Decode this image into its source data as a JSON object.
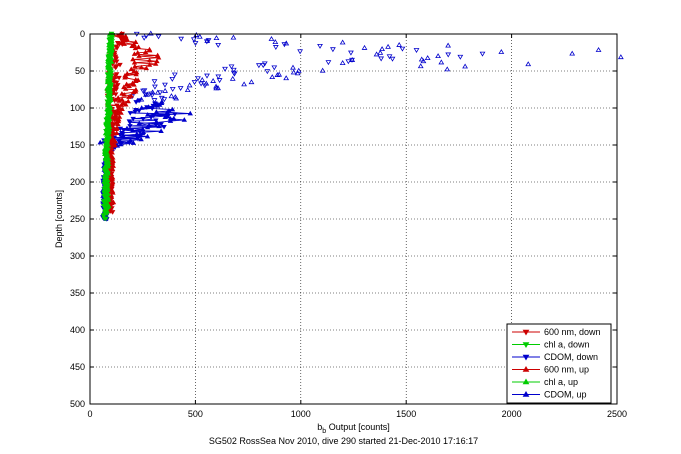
{
  "chart_data": {
    "type": "scatter",
    "title": "",
    "footer": "SG502 RossSea Nov 2010, dive 290 started 21-Dec-2010 17:16:17",
    "xlabel_main": "b",
    "xlabel_sub": "b",
    "xlabel_rest": " Output [counts]",
    "ylabel": "Depth [counts]",
    "xlim": [
      0,
      2500
    ],
    "ylim": [
      0,
      500
    ],
    "y_reversed": true,
    "xticks": [
      0,
      500,
      1000,
      1500,
      2000,
      2500
    ],
    "yticks": [
      0,
      50,
      100,
      150,
      200,
      250,
      300,
      350,
      400,
      450,
      500
    ],
    "grid": "dotted",
    "legend_position": "bottom-right",
    "series": [
      {
        "name": "600 nm, down",
        "color": "#cc0000",
        "marker": "triangle-down",
        "profile": [
          [
            0,
            125
          ],
          [
            10,
            130
          ],
          [
            20,
            125
          ],
          [
            40,
            120
          ],
          [
            60,
            115
          ],
          [
            80,
            110
          ],
          [
            100,
            105
          ],
          [
            120,
            100
          ],
          [
            150,
            95
          ],
          [
            200,
            90
          ],
          [
            240,
            95
          ]
        ]
      },
      {
        "name": "chl a, down",
        "color": "#00cc00",
        "marker": "triangle-down",
        "profile": [
          [
            0,
            100
          ],
          [
            20,
            95
          ],
          [
            50,
            92
          ],
          [
            80,
            90
          ],
          [
            100,
            88
          ],
          [
            150,
            80
          ],
          [
            200,
            75
          ],
          [
            250,
            72
          ]
        ]
      },
      {
        "name": "CDOM, down",
        "color": "#0000cc",
        "marker": "triangle-down",
        "profile": [
          [
            0,
            200
          ],
          [
            10,
            500
          ],
          [
            20,
            1200
          ],
          [
            30,
            1500
          ],
          [
            40,
            900
          ],
          [
            50,
            700
          ],
          [
            60,
            500
          ],
          [
            70,
            400
          ],
          [
            85,
            300
          ],
          [
            100,
            250
          ],
          [
            110,
            300
          ],
          [
            120,
            280
          ],
          [
            135,
            200
          ],
          [
            150,
            120
          ],
          [
            160,
            80
          ],
          [
            200,
            70
          ],
          [
            250,
            70
          ]
        ]
      },
      {
        "name": "600 nm, up",
        "color": "#cc0000",
        "marker": "triangle-up",
        "profile": [
          [
            0,
            150
          ],
          [
            10,
            170
          ],
          [
            20,
            240
          ],
          [
            30,
            270
          ],
          [
            40,
            260
          ],
          [
            50,
            240
          ],
          [
            60,
            210
          ],
          [
            70,
            190
          ],
          [
            80,
            170
          ],
          [
            100,
            140
          ],
          [
            120,
            120
          ],
          [
            140,
            110
          ],
          [
            160,
            100
          ],
          [
            200,
            95
          ],
          [
            240,
            100
          ]
        ]
      },
      {
        "name": "chl a, up",
        "color": "#00cc00",
        "marker": "triangle-up",
        "profile": [
          [
            0,
            100
          ],
          [
            20,
            95
          ],
          [
            50,
            92
          ],
          [
            80,
            90
          ],
          [
            100,
            88
          ],
          [
            150,
            80
          ],
          [
            200,
            78
          ],
          [
            240,
            80
          ]
        ]
      },
      {
        "name": "CDOM, up",
        "color": "#0000cc",
        "marker": "triangle-up",
        "profile": [
          [
            0,
            300
          ],
          [
            10,
            900
          ],
          [
            20,
            1900
          ],
          [
            30,
            2100
          ],
          [
            40,
            1700
          ],
          [
            55,
            900
          ],
          [
            70,
            500
          ],
          [
            85,
            320
          ],
          [
            100,
            250
          ],
          [
            110,
            400
          ],
          [
            120,
            350
          ],
          [
            130,
            250
          ],
          [
            145,
            150
          ],
          [
            160,
            80
          ],
          [
            200,
            70
          ],
          [
            250,
            70
          ]
        ]
      }
    ]
  }
}
